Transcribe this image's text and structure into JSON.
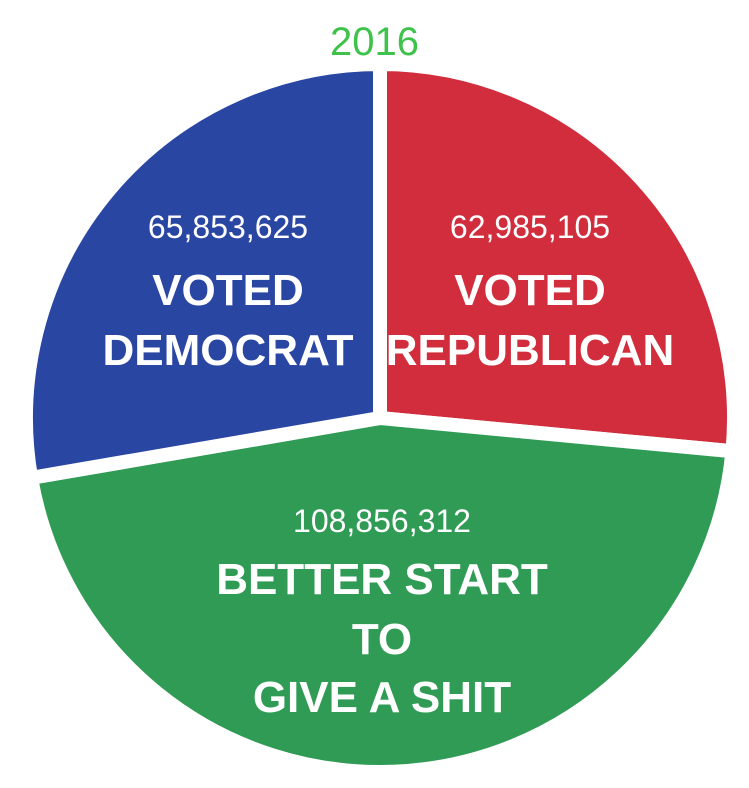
{
  "title": "2016",
  "chart_data": {
    "type": "pie",
    "title": "2016",
    "slices": [
      {
        "id": "democrat",
        "value": 65853625,
        "value_label": "65,853,625",
        "label_lines": [
          "VOTED",
          "DEMOCRAT"
        ],
        "color": "#2a46a3"
      },
      {
        "id": "republican",
        "value": 62985105,
        "value_label": "62,985,105",
        "label_lines": [
          "VOTED",
          "REPUBLICAN"
        ],
        "color": "#d12d3c"
      },
      {
        "id": "nonvoters",
        "value": 108856312,
        "value_label": "108,856,312",
        "label_lines": [
          "BETTER START",
          "TO",
          "GIVE A SHIT"
        ],
        "color": "#2f9b55"
      }
    ],
    "separator_color": "#ffffff"
  }
}
